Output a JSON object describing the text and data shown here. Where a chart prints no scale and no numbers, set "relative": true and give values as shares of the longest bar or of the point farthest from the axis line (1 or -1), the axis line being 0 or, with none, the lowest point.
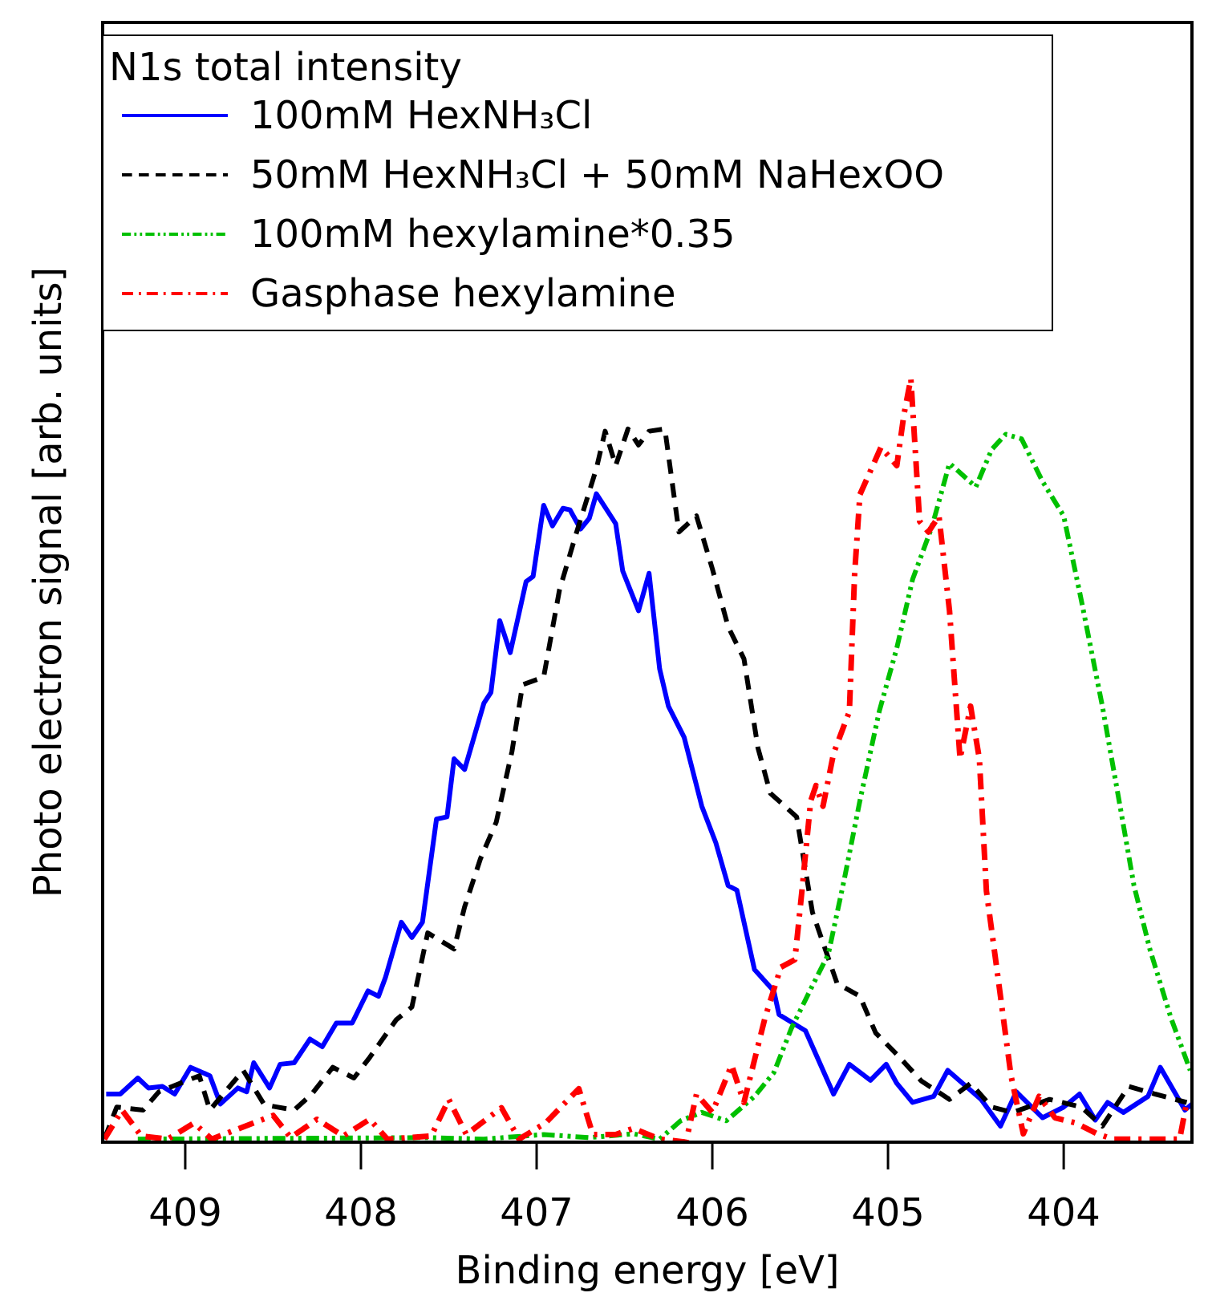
{
  "chart_data": {
    "type": "line",
    "xlabel": "Binding energy [eV]",
    "ylabel": "Photo electron signal [arb. units]",
    "legend_title": "N1s total intensity",
    "legend": "top left",
    "relative": true,
    "xlim": [
      409.47,
      403.27
    ],
    "xticks": [
      409,
      408,
      407,
      406,
      405,
      404
    ],
    "grid": false,
    "marker": "none",
    "series": [
      {
        "name": "100mM HexNH₃Cl",
        "color": "#0000ff",
        "line_style": "solid",
        "x": [
          409.45,
          409.37,
          409.27,
          409.21,
          409.13,
          409.06,
          408.97,
          408.86,
          408.8,
          408.7,
          408.65,
          408.61,
          408.52,
          408.46,
          408.38,
          408.29,
          408.22,
          408.14,
          408.05,
          407.96,
          407.9,
          407.86,
          407.77,
          407.71,
          407.65,
          407.57,
          407.51,
          407.47,
          407.41,
          407.3,
          407.26,
          407.21,
          407.15,
          407.06,
          407.02,
          406.96,
          406.91,
          406.85,
          406.81,
          406.75,
          406.7,
          406.66,
          406.55,
          406.51,
          406.42,
          406.36,
          406.3,
          406.25,
          406.16,
          406.06,
          405.98,
          405.91,
          405.86,
          405.76,
          405.65,
          405.62,
          405.47,
          405.31,
          405.22,
          405.1,
          405.01,
          404.95,
          404.86,
          404.74,
          404.66,
          404.47,
          404.36,
          404.27,
          404.12,
          404.0,
          403.91,
          403.82,
          403.75,
          403.66,
          403.52,
          403.45,
          403.31,
          403.27
        ],
        "values": [
          0.063,
          0.063,
          0.084,
          0.071,
          0.073,
          0.063,
          0.098,
          0.087,
          0.05,
          0.071,
          0.066,
          0.104,
          0.071,
          0.102,
          0.104,
          0.135,
          0.125,
          0.156,
          0.156,
          0.198,
          0.191,
          0.216,
          0.288,
          0.268,
          0.288,
          0.423,
          0.426,
          0.502,
          0.488,
          0.575,
          0.589,
          0.683,
          0.641,
          0.734,
          0.741,
          0.834,
          0.807,
          0.83,
          0.828,
          0.803,
          0.817,
          0.849,
          0.81,
          0.748,
          0.696,
          0.745,
          0.62,
          0.571,
          0.53,
          0.44,
          0.392,
          0.336,
          0.33,
          0.226,
          0.198,
          0.167,
          0.146,
          0.063,
          0.102,
          0.081,
          0.102,
          0.077,
          0.052,
          0.06,
          0.094,
          0.056,
          0.021,
          0.066,
          0.032,
          0.046,
          0.063,
          0.029,
          0.052,
          0.039,
          0.06,
          0.098,
          0.042,
          0.05
        ]
      },
      {
        "name": "50mM HexNH₃Cl + 50mM NaHexOO",
        "color": "#000000",
        "line_style": "dashed",
        "x": [
          409.46,
          409.39,
          409.24,
          409.15,
          408.92,
          408.86,
          408.67,
          408.55,
          408.38,
          408.28,
          408.16,
          408.04,
          407.95,
          407.8,
          407.71,
          407.62,
          407.47,
          407.41,
          407.32,
          407.23,
          407.14,
          407.08,
          406.96,
          406.87,
          406.78,
          406.66,
          406.61,
          406.55,
          406.48,
          406.42,
          406.36,
          406.27,
          406.19,
          406.09,
          406.0,
          405.91,
          405.82,
          405.74,
          405.67,
          405.52,
          405.43,
          405.29,
          405.16,
          405.07,
          404.95,
          404.81,
          404.65,
          404.53,
          404.41,
          404.29,
          404.08,
          403.9,
          403.78,
          403.63,
          403.48,
          403.3
        ],
        "values": [
          0.004,
          0.046,
          0.042,
          0.066,
          0.087,
          0.042,
          0.094,
          0.049,
          0.042,
          0.063,
          0.098,
          0.084,
          0.111,
          0.16,
          0.177,
          0.274,
          0.253,
          0.308,
          0.371,
          0.419,
          0.512,
          0.599,
          0.609,
          0.723,
          0.793,
          0.882,
          0.931,
          0.886,
          0.934,
          0.913,
          0.931,
          0.934,
          0.799,
          0.82,
          0.751,
          0.675,
          0.633,
          0.516,
          0.457,
          0.426,
          0.301,
          0.208,
          0.191,
          0.143,
          0.115,
          0.08,
          0.056,
          0.077,
          0.046,
          0.039,
          0.056,
          0.046,
          0.021,
          0.073,
          0.063,
          0.052
        ]
      },
      {
        "name": "100mM hexylamine*0.35",
        "color": "#00c000",
        "line_style": "dashdotdot",
        "x": [
          409.27,
          407.62,
          407.3,
          406.96,
          406.7,
          406.45,
          406.3,
          406.18,
          406.06,
          405.92,
          405.76,
          405.65,
          405.55,
          405.43,
          405.34,
          405.25,
          405.16,
          405.05,
          404.95,
          404.86,
          404.75,
          404.65,
          404.5,
          404.41,
          404.33,
          404.24,
          404.12,
          404.0,
          403.9,
          403.78,
          403.69,
          403.6,
          403.51,
          403.39,
          403.28
        ],
        "values": [
          0.004,
          0.006,
          0.004,
          0.01,
          0.006,
          0.011,
          0.004,
          0.028,
          0.039,
          0.028,
          0.06,
          0.091,
          0.149,
          0.205,
          0.246,
          0.343,
          0.447,
          0.564,
          0.647,
          0.737,
          0.806,
          0.889,
          0.858,
          0.907,
          0.927,
          0.921,
          0.865,
          0.82,
          0.71,
          0.571,
          0.454,
          0.336,
          0.253,
          0.163,
          0.094
        ]
      },
      {
        "name": "Gasphase hexylamine",
        "color": "#ff0000",
        "line_style": "dashdot",
        "x": [
          409.46,
          409.36,
          409.25,
          409.1,
          408.95,
          408.85,
          408.5,
          408.4,
          408.25,
          408.1,
          407.95,
          407.85,
          407.6,
          407.5,
          407.4,
          407.2,
          407.1,
          406.95,
          406.76,
          406.68,
          406.55,
          406.45,
          406.3,
          406.15,
          406.09,
          406.0,
          405.89,
          405.82,
          405.7,
          405.61,
          405.53,
          405.49,
          405.44,
          405.41,
          405.37,
          405.31,
          405.22,
          405.19,
          405.16,
          405.04,
          404.95,
          404.91,
          404.87,
          404.82,
          404.77,
          404.71,
          404.65,
          404.59,
          404.53,
          404.48,
          404.44,
          404.38,
          404.3,
          404.23,
          404.14,
          404.05,
          403.93,
          403.81,
          403.72,
          403.34,
          403.3
        ],
        "values": [
          0.004,
          0.042,
          0.008,
          0.004,
          0.025,
          0.004,
          0.035,
          0.006,
          0.03,
          0.008,
          0.03,
          0.004,
          0.008,
          0.056,
          0.01,
          0.045,
          0.004,
          0.025,
          0.07,
          0.01,
          0.01,
          0.018,
          0.004,
          0,
          0.063,
          0.039,
          0.101,
          0.052,
          0.163,
          0.229,
          0.239,
          0.329,
          0.447,
          0.467,
          0.44,
          0.509,
          0.564,
          0.744,
          0.848,
          0.91,
          0.886,
          0.952,
          1,
          0.813,
          0.799,
          0.82,
          0.696,
          0.502,
          0.571,
          0.502,
          0.329,
          0.226,
          0.087,
          0.011,
          0.06,
          0.032,
          0.025,
          0.011,
          0.004,
          0.004,
          0.052
        ]
      }
    ]
  }
}
